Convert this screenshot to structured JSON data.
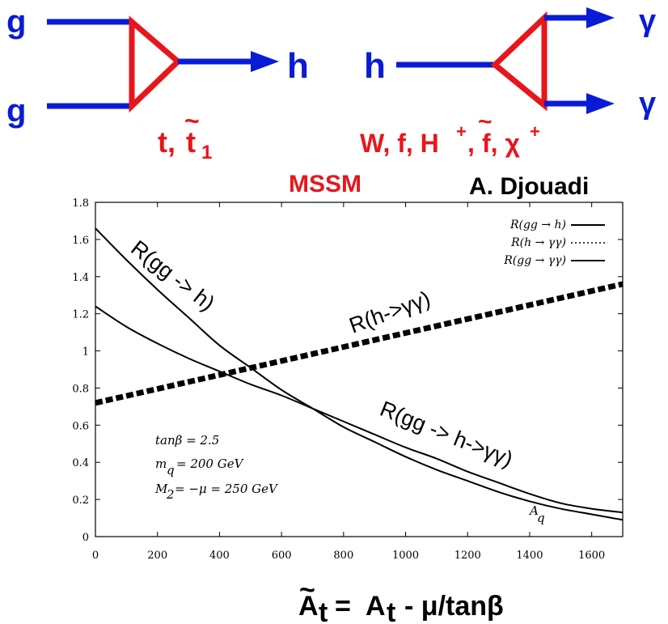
{
  "diagrams": {
    "left": {
      "incoming": [
        "g",
        "g"
      ],
      "outgoing": "h",
      "loop_particle": "t",
      "loop_particle_2": "t",
      "loop_particle_2_sub": "1",
      "loop_separator": ","
    },
    "right": {
      "incoming": "h",
      "outgoing": [
        "γ",
        "γ"
      ],
      "loop_text_1": "W, f, H",
      "loop_sup_1": "+",
      "loop_text_2": ", ",
      "loop_text_3": "f, χ",
      "loop_sup_2": "+"
    },
    "tilde": "~",
    "colors": {
      "line": "#0a1bd6",
      "loop": "#e8161b"
    }
  },
  "header": {
    "model": "MSSM",
    "author": "A. Djouadi"
  },
  "chart_data": {
    "type": "line",
    "xlim": [
      0,
      1700
    ],
    "ylim": [
      0,
      1.8
    ],
    "x_ticks": [
      0,
      200,
      400,
      600,
      800,
      1000,
      1200,
      1400,
      1600
    ],
    "y_ticks": [
      0,
      0.2,
      0.4,
      0.6,
      0.8,
      1,
      1.2,
      1.4,
      1.6,
      1.8
    ],
    "x_tick_labels": [
      "0",
      "200",
      "400",
      "600",
      "800",
      "1000",
      "1200",
      "1400",
      "1600"
    ],
    "y_tick_labels": [
      "0",
      "0.2",
      "0.4",
      "0.6",
      "0.8",
      "1",
      "1.2",
      "1.4",
      "1.6",
      "1.8"
    ],
    "grid": false,
    "legend_position": "top-right",
    "legend": [
      {
        "text": "R(gg → h)",
        "style": "solid"
      },
      {
        "text": "R(h → γγ)",
        "style": "dotted"
      },
      {
        "text": "R(gg → γγ)",
        "style": "solid"
      }
    ],
    "series": [
      {
        "label": "R(gg -> h)",
        "style": "solid",
        "x": [
          0,
          100,
          200,
          300,
          400,
          500,
          600,
          700,
          800,
          900,
          1000,
          1100,
          1200,
          1300,
          1400,
          1500,
          1600,
          1700
        ],
        "y": [
          1.66,
          1.49,
          1.33,
          1.18,
          1.03,
          0.91,
          0.79,
          0.69,
          0.59,
          0.51,
          0.43,
          0.36,
          0.3,
          0.24,
          0.19,
          0.15,
          0.12,
          0.09
        ]
      },
      {
        "label": "R(h->γγ)",
        "style": "dotted",
        "x": [
          0,
          1700
        ],
        "y": [
          0.72,
          1.36
        ]
      },
      {
        "label": "R(gg -> h->γγ)",
        "style": "solid",
        "x": [
          0,
          100,
          200,
          300,
          400,
          500,
          600,
          700,
          800,
          900,
          1000,
          1100,
          1200,
          1300,
          1400,
          1500,
          1600,
          1700
        ],
        "y": [
          1.24,
          1.13,
          1.04,
          0.96,
          0.89,
          0.82,
          0.76,
          0.69,
          0.62,
          0.55,
          0.48,
          0.42,
          0.35,
          0.29,
          0.23,
          0.18,
          0.15,
          0.13
        ]
      }
    ],
    "params": [
      "tanβ = 2.5",
      "m",
      " = 200 GeV",
      "M",
      " = −μ = 250 GeV"
    ],
    "param_subscripts": [
      "q",
      "2"
    ],
    "corner_label": "A",
    "corner_label_sub": "q"
  },
  "formula": {
    "lhs": "A",
    "lhs_sub": "t",
    "eq": "=",
    "rhs": "A",
    "rhs_sub": "t",
    "rest": "- μ/tanβ"
  }
}
